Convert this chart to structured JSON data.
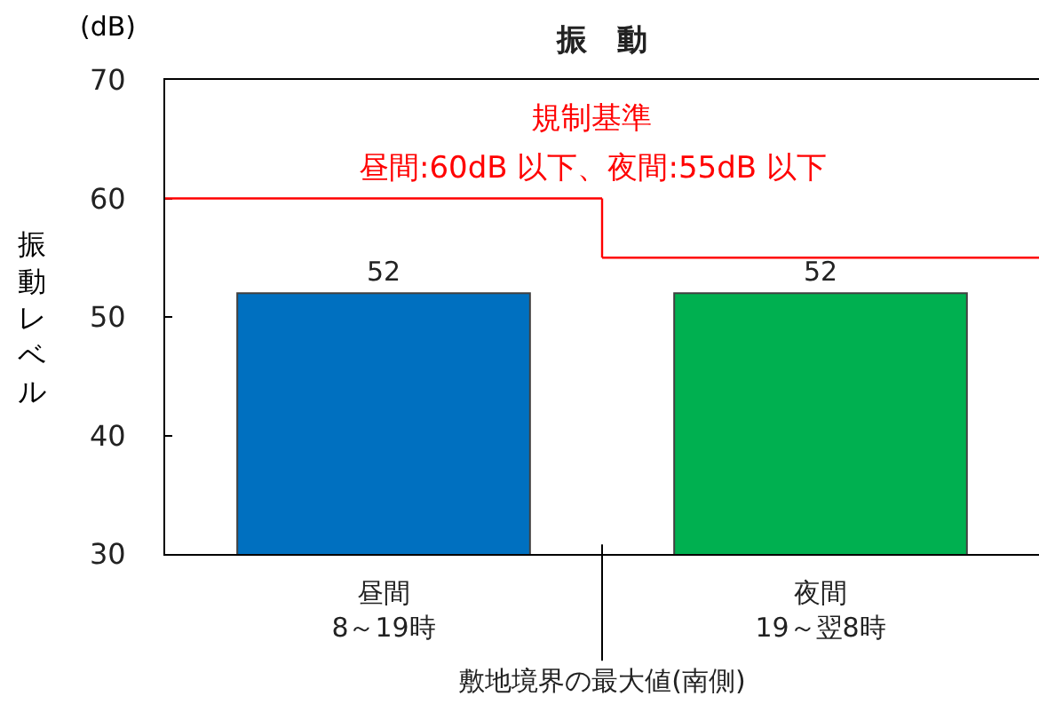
{
  "chart_data": {
    "type": "bar",
    "title": "振　動",
    "ylabel": "振動レベル",
    "xlabel": "敷地境界の最大値(南側)",
    "categories": [
      "昼間\n8～19時",
      "夜間\n19～翌8時"
    ],
    "values": [
      52,
      52
    ],
    "colors": [
      "#0070c0",
      "#00b050"
    ],
    "ylim": [
      30,
      70
    ],
    "yticks": [
      30,
      40,
      50,
      60,
      70
    ],
    "data_labels": true,
    "grid": false,
    "ref_lines": [
      {
        "axis": "y",
        "value": 60,
        "color": "#ff0000"
      },
      {
        "axis": "y",
        "value": 55,
        "color": "#ff0000"
      }
    ],
    "annotations": [
      "(dB)",
      "規制基準",
      {
        "text": "昼間:60dB 以下、夜間:55dB 以下",
        "y": 60
      }
    ]
  }
}
